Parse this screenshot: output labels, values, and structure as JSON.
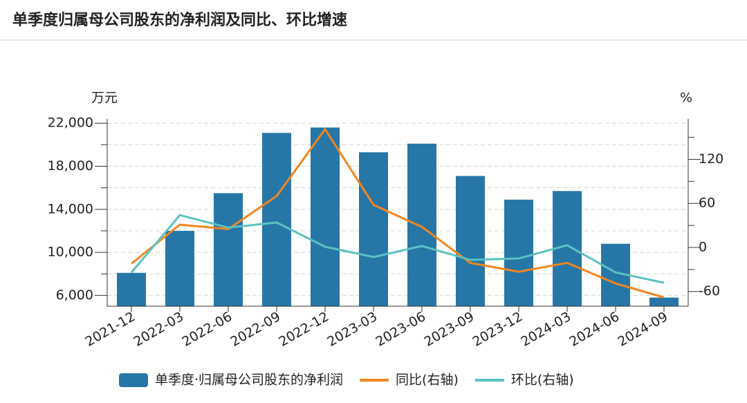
{
  "chart_data": {
    "type": "bar-line",
    "title": "单季度归属母公司股东的净利润及同比、环比增速",
    "y_unit": "万元",
    "y2_unit": "%",
    "categories": [
      "2021-12",
      "2022-03",
      "2022-06",
      "2022-09",
      "2022-12",
      "2023-03",
      "2023-06",
      "2023-09",
      "2023-12",
      "2024-03",
      "2024-06",
      "2024-09"
    ],
    "series": [
      {
        "name": "单季度·归属母公司股东的净利润",
        "type": "bar",
        "color": "#2677a7",
        "values": [
          8100,
          12000,
          15500,
          21100,
          21600,
          19300,
          20100,
          17100,
          14900,
          15700,
          10800,
          5800
        ]
      },
      {
        "name": "同比(右轴)",
        "type": "line",
        "axis": "y2",
        "color": "#f5841f",
        "values": [
          -22,
          31,
          25,
          70,
          161,
          58,
          28,
          -21,
          -33,
          -21,
          -49,
          -68
        ]
      },
      {
        "name": "环比(右轴)",
        "type": "line",
        "axis": "y2",
        "color": "#5bc2c2",
        "values": [
          -34,
          44,
          27,
          34,
          1,
          -13,
          2,
          -17,
          -15,
          3,
          -34,
          -48
        ]
      }
    ],
    "ylim": [
      5000,
      22400
    ],
    "yticks": [
      {
        "value": 6000,
        "label": "6,000"
      },
      {
        "value": 10000,
        "label": "10,000"
      },
      {
        "value": 14000,
        "label": "14,000"
      },
      {
        "value": 18000,
        "label": "18,000"
      },
      {
        "value": 22000,
        "label": "22,000"
      }
    ],
    "yminor_ticks": [
      8000,
      12000,
      16000,
      20000
    ],
    "y2lim": [
      -80,
      175
    ],
    "y2ticks": [
      -60,
      0,
      60,
      120
    ],
    "y2minor_ticks": [
      -30,
      30,
      90,
      150
    ],
    "grid": true
  }
}
